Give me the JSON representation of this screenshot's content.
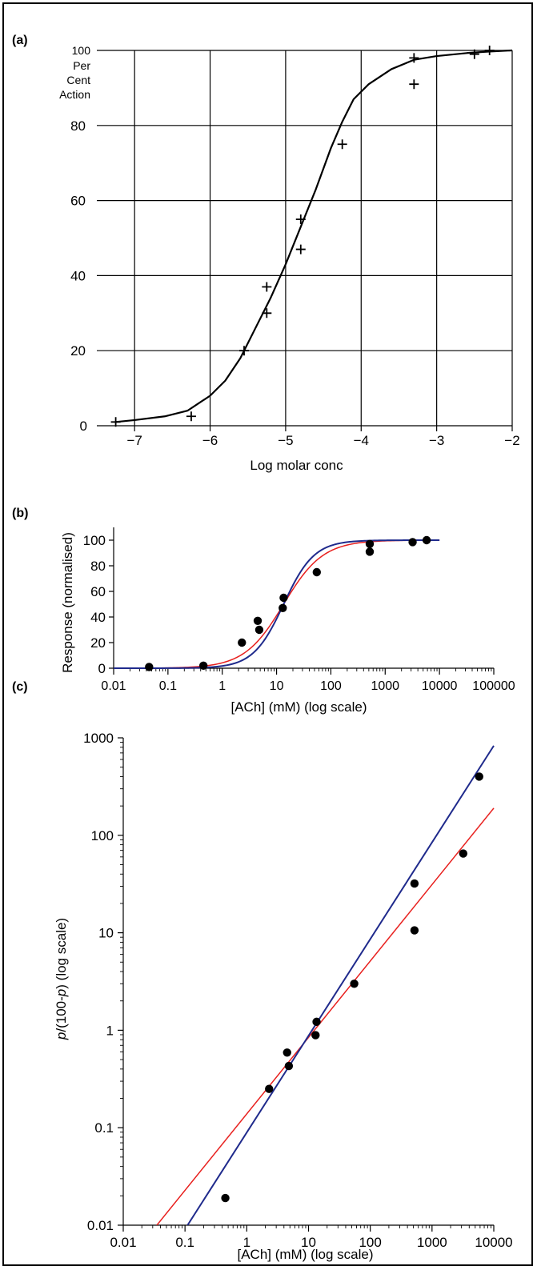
{
  "chart_data": [
    {
      "panel_label": "(a)",
      "type": "scatter",
      "xlabel": "Log molar conc",
      "ylabel_lines": [
        "Per",
        "Cent",
        "Action"
      ],
      "xlim": [
        -7.5,
        -2
      ],
      "ylim": [
        0,
        100
      ],
      "x_ticks": [
        -7,
        -6,
        -5,
        -4,
        -3,
        -2
      ],
      "x_tick_labels": [
        "−7",
        "−6",
        "−5",
        "−4",
        "−3",
        "−2"
      ],
      "y_ticks": [
        0,
        20,
        40,
        60,
        80,
        100
      ],
      "y_tick_labels": [
        "0",
        "20",
        "40",
        "60",
        "80",
        "100"
      ],
      "grid": true,
      "marker": "plus",
      "points": [
        {
          "x": -7.25,
          "y": 1
        },
        {
          "x": -6.25,
          "y": 2.5
        },
        {
          "x": -5.55,
          "y": 20
        },
        {
          "x": -5.25,
          "y": 30
        },
        {
          "x": -5.25,
          "y": 37
        },
        {
          "x": -4.8,
          "y": 47
        },
        {
          "x": -4.8,
          "y": 55
        },
        {
          "x": -4.25,
          "y": 75
        },
        {
          "x": -3.3,
          "y": 91
        },
        {
          "x": -3.3,
          "y": 98
        },
        {
          "x": -2.5,
          "y": 99
        },
        {
          "x": -2.3,
          "y": 100
        }
      ],
      "curve": {
        "x": [
          -7.25,
          -7.0,
          -6.6,
          -6.3,
          -6.0,
          -5.8,
          -5.6,
          -5.4,
          -5.2,
          -5.0,
          -4.8,
          -4.6,
          -4.4,
          -4.25,
          -4.1,
          -3.9,
          -3.6,
          -3.3,
          -3.0,
          -2.6,
          -2.3,
          -2.0
        ],
        "y": [
          1,
          1.5,
          2.5,
          4,
          8,
          12,
          18,
          26,
          34,
          43,
          53,
          63,
          74,
          81,
          87,
          91,
          95,
          97.5,
          98.5,
          99.3,
          99.7,
          100
        ]
      }
    },
    {
      "panel_label": "(b)",
      "type": "scatter",
      "xlabel": "[ACh] (mM) (log scale)",
      "ylabel": "Response (normalised)",
      "x_scale": "log",
      "xlim": [
        0.01,
        100000
      ],
      "ylim": [
        0,
        100
      ],
      "x_ticks": [
        0.01,
        0.1,
        1,
        10,
        100,
        1000,
        10000,
        100000
      ],
      "x_tick_labels": [
        "0.01",
        "0.1",
        "1",
        "10",
        "100",
        "1000",
        "10000",
        "100000"
      ],
      "y_ticks": [
        0,
        20,
        40,
        60,
        80,
        100
      ],
      "y_tick_labels": [
        "0",
        "20",
        "40",
        "60",
        "80",
        "100"
      ],
      "grid": false,
      "points": [
        {
          "x": 0.045,
          "y": 1
        },
        {
          "x": 0.45,
          "y": 2
        },
        {
          "x": 2.3,
          "y": 20
        },
        {
          "x": 4.5,
          "y": 37
        },
        {
          "x": 4.8,
          "y": 30
        },
        {
          "x": 13,
          "y": 47
        },
        {
          "x": 13.5,
          "y": 55
        },
        {
          "x": 55,
          "y": 75
        },
        {
          "x": 520,
          "y": 91
        },
        {
          "x": 520,
          "y": 97
        },
        {
          "x": 3200,
          "y": 98.5
        },
        {
          "x": 5800,
          "y": 100
        }
      ],
      "curves": [
        {
          "color": "#e8201e",
          "ec50": 13.5,
          "hill": 1.2,
          "xmin": 0.01,
          "xmax": 10000
        },
        {
          "color": "#1f2a8c",
          "ec50": 13.5,
          "hill": 1.55,
          "xmin": 0.01,
          "xmax": 10000
        }
      ]
    },
    {
      "panel_label": "(c)",
      "type": "scatter",
      "xlabel": "[ACh] (mM) (log scale)",
      "ylabel_parts": [
        {
          "text": "p",
          "italic": true
        },
        {
          "text": "/(100-",
          "italic": false
        },
        {
          "text": "p",
          "italic": true
        },
        {
          "text": ") (log scale)",
          "italic": false
        }
      ],
      "x_scale": "log",
      "y_scale": "log",
      "xlim": [
        0.01,
        10000
      ],
      "ylim": [
        0.01,
        1000
      ],
      "x_ticks": [
        0.01,
        0.1,
        1,
        10,
        100,
        1000,
        10000
      ],
      "x_tick_labels": [
        "0.01",
        "0.1",
        "1",
        "10",
        "100",
        "1000",
        "10000"
      ],
      "y_ticks": [
        0.01,
        0.1,
        1,
        10,
        100,
        1000
      ],
      "y_tick_labels": [
        "0.01",
        "0.1",
        "1",
        "10",
        "100",
        "1000"
      ],
      "grid": false,
      "points": [
        {
          "x": 0.45,
          "y": 0.019
        },
        {
          "x": 2.3,
          "y": 0.25
        },
        {
          "x": 4.5,
          "y": 0.59
        },
        {
          "x": 4.8,
          "y": 0.43
        },
        {
          "x": 13,
          "y": 0.89
        },
        {
          "x": 13.5,
          "y": 1.22
        },
        {
          "x": 55,
          "y": 3.0
        },
        {
          "x": 520,
          "y": 10.6
        },
        {
          "x": 520,
          "y": 32
        },
        {
          "x": 3200,
          "y": 65
        },
        {
          "x": 5800,
          "y": 400
        }
      ],
      "lines": [
        {
          "color": "#e8201e",
          "x": [
            0.035,
            10000
          ],
          "y": [
            0.01,
            190
          ]
        },
        {
          "color": "#1f2a8c",
          "x": [
            0.11,
            10000
          ],
          "y": [
            0.01,
            830
          ]
        }
      ]
    }
  ]
}
